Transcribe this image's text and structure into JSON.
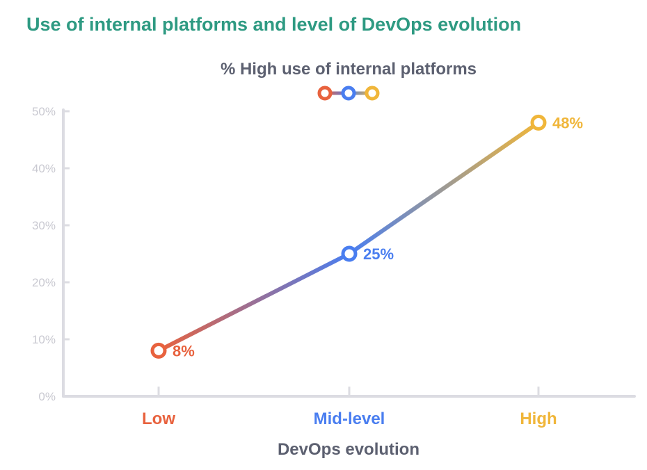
{
  "page": {
    "title": "Use of internal platforms and level of DevOps evolution"
  },
  "chart_data": {
    "type": "line",
    "title": "Use of internal platforms and level of DevOps evolution",
    "subtitle": "% High use of internal platforms",
    "categories": [
      "Low",
      "Mid-level",
      "High"
    ],
    "series": [
      {
        "name": "% High use of internal platforms",
        "values": [
          8,
          25,
          48
        ]
      }
    ],
    "data_labels": [
      "8%",
      "25%",
      "48%"
    ],
    "category_colors": [
      "#e8623e",
      "#4a7ef0",
      "#f0b63a"
    ],
    "xlabel": "DevOps evolution",
    "ylabel": "",
    "ylim": [
      0,
      50
    ],
    "y_ticks": [
      {
        "value": 0,
        "label": "0%"
      },
      {
        "value": 10,
        "label": "10%"
      },
      {
        "value": 20,
        "label": "20%"
      },
      {
        "value": 30,
        "label": "30%"
      },
      {
        "value": 40,
        "label": "40%"
      },
      {
        "value": 50,
        "label": "50%"
      }
    ],
    "axis_color": "#dcdce2",
    "tick_label_color": "#c9c9d1",
    "label_color": "#5c6070",
    "legend": "top-center"
  }
}
